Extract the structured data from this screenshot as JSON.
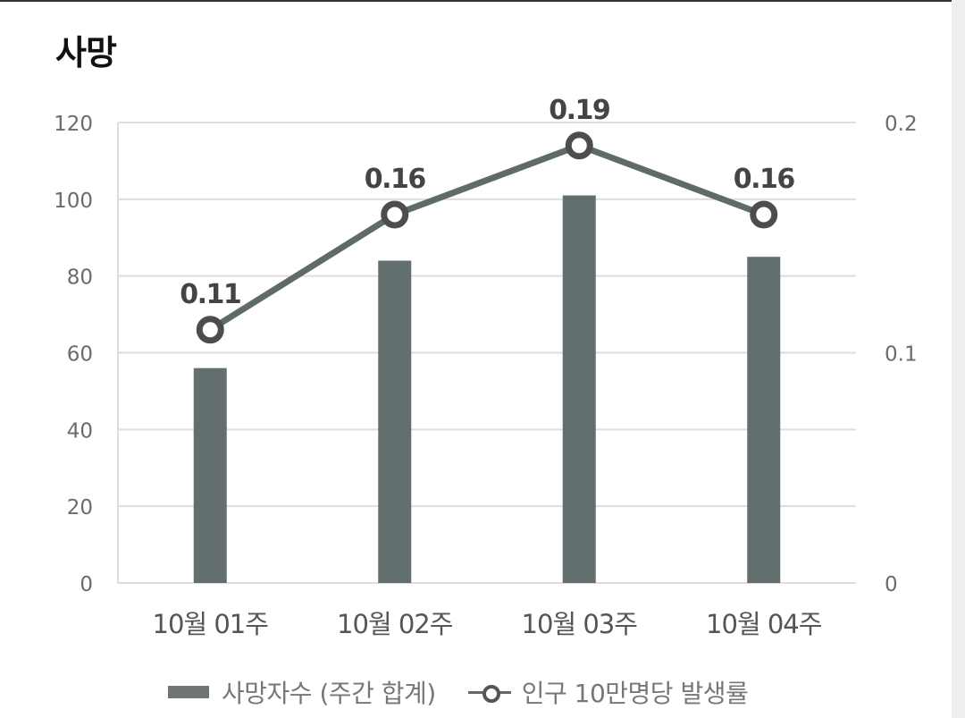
{
  "page": {
    "title": "사망"
  },
  "chart_data": {
    "type": "bar",
    "categories": [
      "10월 01주",
      "10월 02주",
      "10월 03주",
      "10월 04주"
    ],
    "series": [
      {
        "name": "사망자수 (주간 합계)",
        "type": "bar",
        "axis": "left",
        "values": [
          56,
          84,
          101,
          85
        ]
      },
      {
        "name": "인구 10만명당 발생률",
        "type": "line",
        "axis": "right",
        "values": [
          0.11,
          0.16,
          0.19,
          0.16
        ],
        "labels": [
          "0.11",
          "0.16",
          "0.19",
          "0.16"
        ]
      }
    ],
    "y_left": {
      "lim": [
        0,
        120
      ],
      "ticks": [
        0,
        20,
        40,
        60,
        80,
        100,
        120
      ]
    },
    "y_right": {
      "lim": [
        0,
        0.2
      ],
      "ticks": [
        "0",
        "0.1",
        "0.2"
      ]
    },
    "grid": true,
    "legend_position": "bottom",
    "colors": {
      "bar": "#636e6e",
      "line": "#5f6a6a",
      "marker_stroke": "#4d4d4d",
      "grid": "#dddddd",
      "tick_text": "#6b6b6b",
      "label_text": "#444444"
    }
  }
}
